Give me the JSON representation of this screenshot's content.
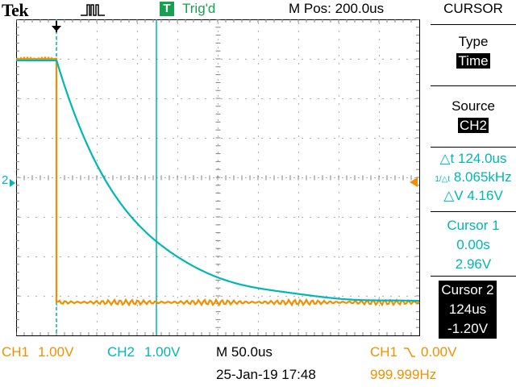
{
  "header": {
    "brand": "Tek",
    "acquire_icon": "pulse-icon",
    "trigger_badge": "T",
    "trigger_status": "Trig'd",
    "position": "M Pos: 200.0us",
    "menu_title": "CURSOR"
  },
  "side_menu": {
    "type_label": "Type",
    "type_value": "Time",
    "source_label": "Source",
    "source_value": "CH2",
    "delta_t": "△t 124.0us",
    "delta_freq_symbol": "1/△t",
    "delta_freq": "8.065kHz",
    "delta_v": "△V 4.16V",
    "cursor1_label": "Cursor 1",
    "cursor1_time": "0.00s",
    "cursor1_value": "2.96V",
    "cursor2_label": "Cursor 2",
    "cursor2_time": "124us",
    "cursor2_value": "-1.20V"
  },
  "status": {
    "ch1_label": "CH1",
    "ch1_scale": "1.00V",
    "ch2_label": "CH2",
    "ch2_scale": "1.00V",
    "timebase": "M 50.0us",
    "trigger_source": "CH1",
    "trigger_level": "0.00V",
    "date_time": "25-Jan-19 17:48",
    "frequency": "999.999Hz"
  },
  "markers": {
    "ch2_ground": "2",
    "trigger_level_icon": "arrow-left-icon",
    "trigger_position_icon": "arrow-down-icon"
  },
  "colors": {
    "ch1": "#f09000",
    "ch2": "#00b6b6",
    "trigger": "#18a050",
    "grid": "#808080"
  }
}
